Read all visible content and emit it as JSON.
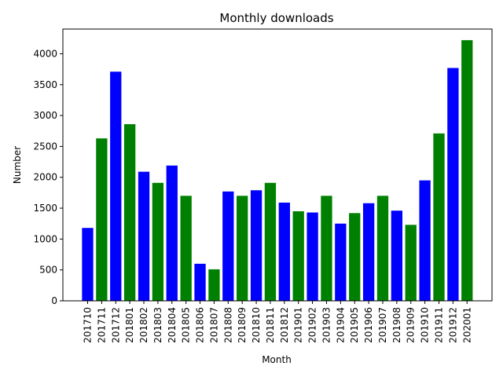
{
  "chart_data": {
    "type": "bar",
    "title": "Monthly downloads",
    "xlabel": "Month",
    "ylabel": "Number",
    "ylim": [
      0,
      4400
    ],
    "yticks": [
      0,
      500,
      1000,
      1500,
      2000,
      2500,
      3000,
      3500,
      4000
    ],
    "grid": false,
    "legend": "none",
    "colors": [
      "#0000ff",
      "#008000"
    ],
    "categories": [
      "201710",
      "201711",
      "201712",
      "201801",
      "201802",
      "201803",
      "201804",
      "201805",
      "201806",
      "201807",
      "201808",
      "201809",
      "201810",
      "201811",
      "201812",
      "201901",
      "201902",
      "201903",
      "201904",
      "201905",
      "201906",
      "201907",
      "201908",
      "201909",
      "201910",
      "201911",
      "201912",
      "202001"
    ],
    "values": [
      1180,
      2630,
      3710,
      2860,
      2090,
      1910,
      2190,
      1700,
      600,
      510,
      1770,
      1700,
      1790,
      1910,
      1590,
      1450,
      1430,
      1700,
      1250,
      1420,
      1580,
      1700,
      1460,
      1230,
      1950,
      2710,
      3770,
      4220
    ]
  }
}
